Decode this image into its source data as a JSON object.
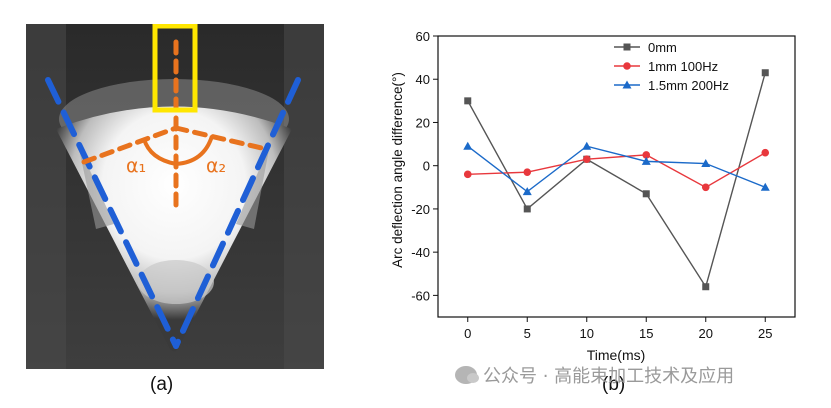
{
  "panel_a": {
    "caption": "(a)",
    "label_alpha1": "α₁",
    "label_alpha2": "α₂",
    "colors": {
      "dash_blue": "#1f5fd6",
      "dash_orange": "#e8731e",
      "box_yellow": "#ffe600"
    }
  },
  "panel_b": {
    "caption": "(b)"
  },
  "chart_data": {
    "type": "line",
    "title": "",
    "xlabel": "Time(ms)",
    "ylabel": "Arc deflection angle difference(°)",
    "x": [
      0,
      5,
      10,
      15,
      20,
      25
    ],
    "xticks": [
      "0",
      "5",
      "10",
      "15",
      "20",
      "25"
    ],
    "yticks": [
      "-60",
      "-40",
      "-20",
      "0",
      "20",
      "40",
      "60"
    ],
    "xlim": [
      -2.5,
      27.5
    ],
    "ylim": [
      -70,
      60
    ],
    "grid": false,
    "legend_position": "top-right",
    "series": [
      {
        "name": "0mm",
        "color": "#555555",
        "marker": "square",
        "values": [
          30,
          -20,
          3,
          -13,
          -56,
          43
        ]
      },
      {
        "name": "1mm 100Hz",
        "color": "#e8383d",
        "marker": "circle",
        "values": [
          -4,
          -3,
          3,
          5,
          -10,
          6
        ]
      },
      {
        "name": "1.5mm 200Hz",
        "color": "#1b6ac9",
        "marker": "triangle",
        "values": [
          9,
          -12,
          9,
          2,
          1,
          -10
        ]
      }
    ]
  },
  "watermark": {
    "text": "公众号 · 高能束加工技术及应用"
  }
}
